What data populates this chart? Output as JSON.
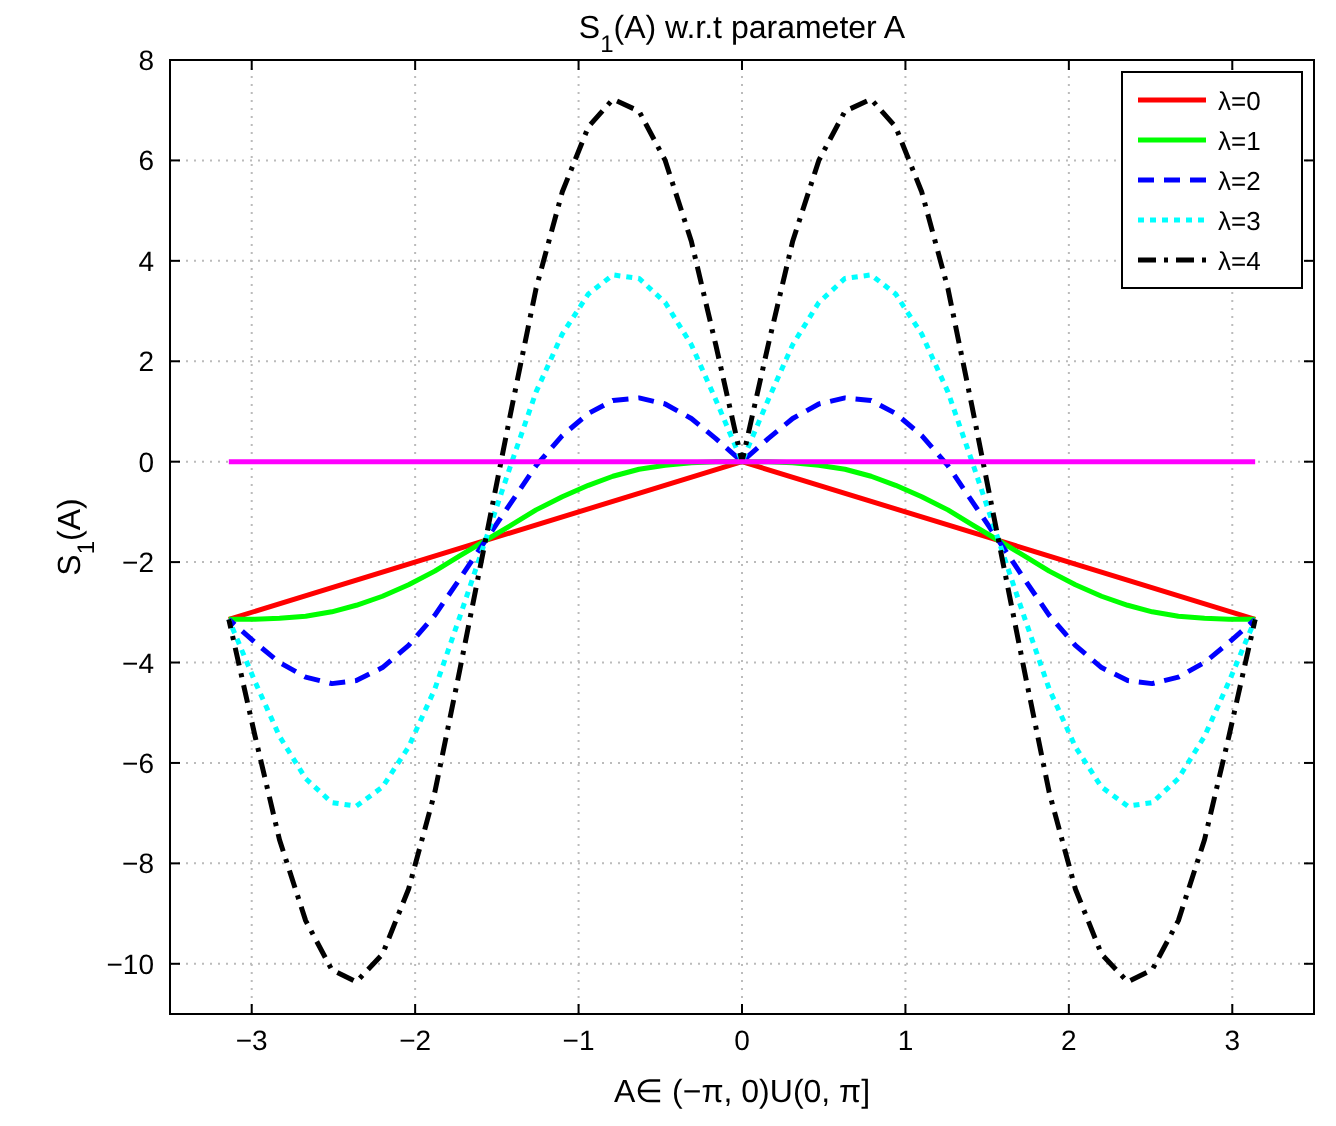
{
  "chart_data": {
    "type": "line",
    "title": "S$_{1}$(A) w.r.t parameter A",
    "xlabel": "A∈ (−π, 0)U(0, π]",
    "ylabel": "S$_{1}$(A)",
    "xlim": [
      -3.5,
      3.5
    ],
    "xticks": [
      -3,
      -2,
      -1,
      0,
      1,
      2,
      3
    ],
    "ylim": [
      -11,
      8
    ],
    "yticks": [
      -10,
      -8,
      -6,
      -4,
      -2,
      0,
      2,
      4,
      6,
      8
    ],
    "grid": true,
    "legend": "top right",
    "marker": "none",
    "series": [
      {
        "name": "λ=0",
        "color": "#ff0000",
        "line_style": "solid",
        "x": [
          -3.14,
          0,
          3.14
        ],
        "values": [
          -3.14,
          0,
          -3.14
        ]
      },
      {
        "name": "λ=1",
        "color": "#00ff00",
        "line_style": "solid",
        "x": [
          -3.14,
          -2.98,
          -2.83,
          -2.67,
          -2.51,
          -2.36,
          -2.2,
          -2.04,
          -1.88,
          -1.73,
          -1.57,
          -1.41,
          -1.26,
          -1.1,
          -0.94,
          -0.79,
          -0.63,
          -0.47,
          -0.31,
          -0.16,
          0,
          0.16,
          0.31,
          0.47,
          0.63,
          0.79,
          0.94,
          1.1,
          1.26,
          1.41,
          1.57,
          1.73,
          1.88,
          2.04,
          2.2,
          2.36,
          2.51,
          2.67,
          2.83,
          2.98,
          3.14
        ],
        "values": [
          -3.14,
          -3.14,
          -3.12,
          -3.08,
          -2.99,
          -2.86,
          -2.68,
          -2.45,
          -2.18,
          -1.88,
          -1.57,
          -1.26,
          -0.96,
          -0.7,
          -0.47,
          -0.29,
          -0.15,
          -0.07,
          -0.02,
          0,
          0,
          0,
          -0.02,
          -0.07,
          -0.15,
          -0.29,
          -0.47,
          -0.7,
          -0.96,
          -1.26,
          -1.57,
          -1.88,
          -2.18,
          -2.45,
          -2.68,
          -2.86,
          -2.99,
          -3.08,
          -3.12,
          -3.14,
          -3.14
        ]
      },
      {
        "name": "λ=2",
        "color": "#0000ff",
        "line_style": "dashed",
        "x": [
          -3.14,
          -2.98,
          -2.83,
          -2.67,
          -2.51,
          -2.36,
          -2.2,
          -2.04,
          -1.88,
          -1.73,
          -1.57,
          -1.41,
          -1.26,
          -1.1,
          -0.94,
          -0.79,
          -0.63,
          -0.47,
          -0.31,
          -0.16,
          0,
          0.16,
          0.31,
          0.47,
          0.63,
          0.79,
          0.94,
          1.1,
          1.26,
          1.41,
          1.57,
          1.73,
          1.88,
          2.04,
          2.2,
          2.36,
          2.51,
          2.67,
          2.83,
          2.98,
          3.14
        ],
        "values": [
          -3.14,
          -3.6,
          -4,
          -4.29,
          -4.42,
          -4.36,
          -4.1,
          -3.66,
          -3.06,
          -2.35,
          -1.57,
          -0.8,
          -0.08,
          0.52,
          0.96,
          1.22,
          1.27,
          1.15,
          0.86,
          0.46,
          0,
          0.46,
          0.86,
          1.15,
          1.27,
          1.22,
          0.96,
          0.52,
          -0.08,
          -0.8,
          -1.57,
          -2.35,
          -3.06,
          -3.66,
          -4.1,
          -4.36,
          -4.42,
          -4.29,
          -4,
          -3.6,
          -3.14
        ]
      },
      {
        "name": "λ=3",
        "color": "#00ffff",
        "line_style": "dotted",
        "x": [
          -3.14,
          -2.98,
          -2.83,
          -2.67,
          -2.51,
          -2.36,
          -2.2,
          -2.04,
          -1.88,
          -1.73,
          -1.57,
          -1.41,
          -1.26,
          -1.1,
          -0.94,
          -0.79,
          -0.63,
          -0.47,
          -0.31,
          -0.16,
          0,
          0.16,
          0.31,
          0.47,
          0.63,
          0.79,
          0.94,
          1.1,
          1.26,
          1.41,
          1.57,
          1.73,
          1.88,
          2.04,
          2.2,
          2.36,
          2.51,
          2.67,
          2.83,
          2.98,
          3.14
        ],
        "values": [
          -3.14,
          -4.38,
          -5.47,
          -6.31,
          -6.79,
          -6.86,
          -6.48,
          -5.68,
          -4.53,
          -3.12,
          -1.57,
          -0.02,
          1.39,
          2.54,
          3.34,
          3.72,
          3.65,
          3.17,
          2.33,
          1.23,
          0,
          1.23,
          2.33,
          3.17,
          3.65,
          3.72,
          3.34,
          2.54,
          1.39,
          -0.02,
          -1.57,
          -3.12,
          -4.53,
          -5.68,
          -6.48,
          -6.86,
          -6.79,
          -6.31,
          -5.47,
          -4.38,
          -3.14
        ]
      },
      {
        "name": "λ=4",
        "color": "#000000",
        "line_style": "dashdot",
        "x": [
          -3.14,
          -2.98,
          -2.83,
          -2.67,
          -2.51,
          -2.36,
          -2.2,
          -2.04,
          -1.88,
          -1.73,
          -1.57,
          -1.41,
          -1.26,
          -1.1,
          -0.94,
          -0.79,
          -0.63,
          -0.47,
          -0.31,
          -0.16,
          0,
          0.16,
          0.31,
          0.47,
          0.63,
          0.79,
          0.94,
          1.1,
          1.26,
          1.41,
          1.57,
          1.73,
          1.88,
          2.04,
          2.2,
          2.36,
          2.51,
          2.67,
          2.83,
          2.98,
          3.14
        ],
        "values": [
          -3.14,
          -5.46,
          -7.53,
          -9.14,
          -10.12,
          -10.36,
          -9.81,
          -8.51,
          -6.59,
          -4.2,
          -1.57,
          1.06,
          3.45,
          5.37,
          6.67,
          7.22,
          6.98,
          6,
          4.39,
          2.32,
          0,
          2.32,
          4.39,
          6,
          6.98,
          7.22,
          6.67,
          5.37,
          3.45,
          1.06,
          -1.57,
          -4.2,
          -6.59,
          -8.51,
          -9.81,
          -10.36,
          -10.12,
          -9.14,
          -7.53,
          -5.46,
          -3.14
        ]
      },
      {
        "color": "#ff00ff",
        "line_style": "solid",
        "x": [
          -3.14,
          3.14
        ],
        "values": [
          0,
          0
        ]
      }
    ]
  }
}
